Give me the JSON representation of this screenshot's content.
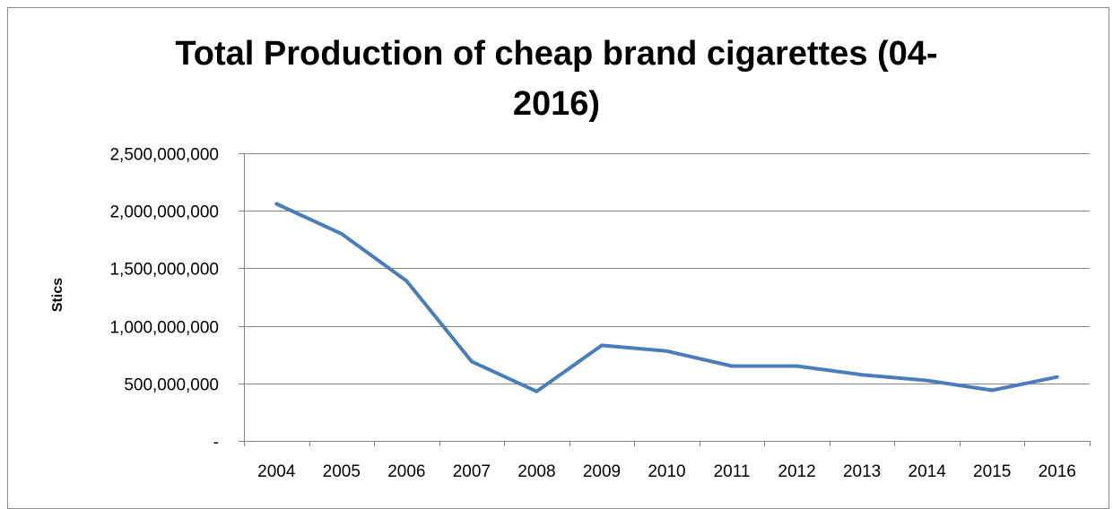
{
  "chart_data": {
    "type": "line",
    "title_lines": [
      "Total Production of cheap brand cigarettes (04-",
      "2016)"
    ],
    "ylabel": "Stics",
    "xlabel": "",
    "categories": [
      "2004",
      "2005",
      "2006",
      "2007",
      "2008",
      "2009",
      "2010",
      "2011",
      "2012",
      "2013",
      "2014",
      "2015",
      "2016"
    ],
    "series": [
      {
        "values": [
          2060000000,
          1800000000,
          1390000000,
          690000000,
          430000000,
          830000000,
          780000000,
          650000000,
          650000000,
          575000000,
          525000000,
          440000000,
          555000000
        ]
      }
    ],
    "ylim": [
      0,
      2500000000
    ],
    "yticks": [
      {
        "value": 0,
        "label": "-"
      },
      {
        "value": 500000000,
        "label": "500,000,000"
      },
      {
        "value": 1000000000,
        "label": "1,000,000,000"
      },
      {
        "value": 1500000000,
        "label": "1,500,000,000"
      },
      {
        "value": 2000000000,
        "label": "2,000,000,000"
      },
      {
        "value": 2500000000,
        "label": "2,500,000,000"
      }
    ],
    "grid": true,
    "legend": "none",
    "line_color": "#4a7ebb",
    "grid_color": "#868686"
  }
}
